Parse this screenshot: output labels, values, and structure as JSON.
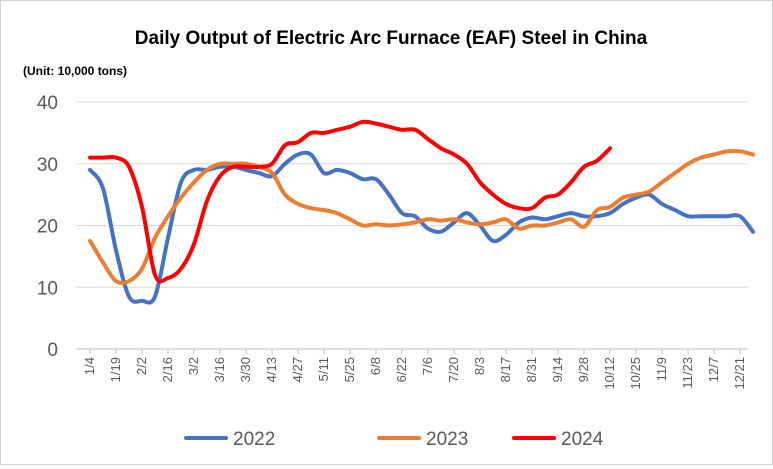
{
  "chart_data": {
    "type": "line",
    "title": "Daily Output of Electric Arc Furnace (EAF) Steel in China",
    "subtitle": "(Unit: 10,000 tons)",
    "xlabel": "",
    "ylabel": "",
    "ylim": [
      0,
      40
    ],
    "yticks": [
      "0",
      "10",
      "20",
      "30",
      "40"
    ],
    "categories": [
      "1/4",
      "1/19",
      "2/2",
      "2/16",
      "3/2",
      "3/16",
      "3/30",
      "4/13",
      "4/27",
      "5/11",
      "5/25",
      "6/8",
      "6/22",
      "7/6",
      "7/20",
      "8/3",
      "8/17",
      "8/31",
      "9/14",
      "9/28",
      "10/12",
      "10/25",
      "11/9",
      "11/23",
      "12/7",
      "12/21"
    ],
    "grid": true,
    "legend_position": "bottom",
    "series": [
      {
        "name": "2022",
        "color": "#4472c4",
        "x": [
          0,
          0.5,
          1,
          1.5,
          2,
          2.5,
          3,
          3.5,
          4,
          4.5,
          5,
          5.5,
          6,
          6.5,
          7,
          7.5,
          8,
          8.5,
          9,
          9.5,
          10,
          10.5,
          11,
          11.5,
          12,
          12.5,
          13,
          13.5,
          14,
          14.5,
          15,
          15.5,
          16,
          16.5,
          17,
          17.5,
          18,
          18.5,
          19,
          19.5,
          20,
          20.5,
          21,
          21.5,
          22,
          22.5,
          23,
          23.5,
          24,
          24.5,
          25,
          25.5
        ],
        "values": [
          29,
          26,
          16,
          8.5,
          7.8,
          8.5,
          18,
          27,
          29,
          29,
          29.5,
          29.5,
          29,
          28.5,
          28,
          30,
          31.5,
          31.5,
          28.5,
          29,
          28.5,
          27.5,
          27.5,
          25,
          22,
          21.5,
          19.5,
          19,
          20.5,
          22,
          20,
          17.5,
          18.5,
          20.5,
          21.3,
          21,
          21.5,
          22,
          21.5,
          21.5,
          22,
          23.5,
          24.5,
          25,
          23.5,
          22.5,
          21.5,
          21.5,
          21.5,
          21.5,
          21.5,
          19
        ]
      },
      {
        "name": "2023",
        "color": "#ed7d31",
        "x": [
          0,
          0.5,
          1,
          1.5,
          2,
          2.5,
          3,
          3.5,
          4,
          4.5,
          5,
          5.5,
          6,
          6.5,
          7,
          7.5,
          8,
          8.5,
          9,
          9.5,
          10,
          10.5,
          11,
          11.5,
          12,
          12.5,
          13,
          13.5,
          14,
          14.5,
          15,
          15.5,
          16,
          16.5,
          17,
          17.5,
          18,
          18.5,
          19,
          19.5,
          20,
          20.5,
          21,
          21.5,
          22,
          22.5,
          23,
          23.5,
          24,
          24.5,
          25,
          25.5
        ],
        "values": [
          17.5,
          14,
          11,
          11,
          13,
          18,
          21.5,
          24.5,
          27,
          29,
          30,
          30,
          30,
          29.5,
          28.5,
          25,
          23.5,
          22.8,
          22.5,
          22,
          21,
          20,
          20.2,
          20,
          20.2,
          20.5,
          21,
          20.8,
          21,
          20.5,
          20.2,
          20.5,
          21,
          19.5,
          20,
          20,
          20.5,
          21,
          19.8,
          22.5,
          23,
          24.5,
          25,
          25.5,
          27,
          28.5,
          30,
          31,
          31.5,
          32,
          32,
          31.5
        ]
      },
      {
        "name": "2024",
        "color": "#ff0000",
        "x": [
          0,
          0.5,
          1,
          1.5,
          2,
          2.5,
          3,
          3.5,
          4,
          4.5,
          5,
          5.5,
          6,
          6.5,
          7,
          7.5,
          8,
          8.5,
          9,
          9.5,
          10,
          10.5,
          11,
          11.5,
          12,
          12.5,
          13,
          13.5,
          14,
          14.5,
          15,
          15.5,
          16,
          16.5,
          17,
          17.5,
          18,
          18.5,
          19,
          19.5,
          20
        ],
        "values": [
          31,
          31,
          31,
          29.5,
          23,
          12,
          11.5,
          13,
          17,
          24,
          28,
          29.5,
          29.5,
          29.5,
          30,
          33,
          33.5,
          35,
          35,
          35.5,
          36,
          36.8,
          36.5,
          36,
          35.5,
          35.5,
          34,
          32.5,
          31.5,
          30,
          27,
          25,
          23.5,
          22.8,
          22.8,
          24.5,
          25,
          27,
          29.5,
          30.5,
          32.5
        ]
      }
    ]
  }
}
